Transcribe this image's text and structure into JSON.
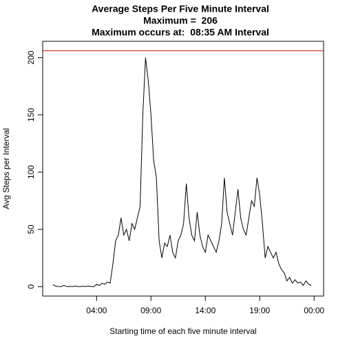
{
  "chart_data": {
    "type": "line",
    "title": [
      "Average Steps Per Five Minute Interval",
      "Maximum =  206",
      "Maximum occurs at:  08:35 AM Interval"
    ],
    "x_label": "Starting time of each five minute interval",
    "y_label": "Avg Steps per Interval",
    "x": [
      0,
      15,
      30,
      45,
      60,
      75,
      90,
      105,
      120,
      135,
      150,
      165,
      180,
      195,
      210,
      225,
      240,
      255,
      270,
      285,
      300,
      315,
      330,
      345,
      360,
      375,
      390,
      405,
      420,
      435,
      450,
      465,
      480,
      495,
      510,
      525,
      540,
      555,
      570,
      585,
      600,
      615,
      630,
      645,
      660,
      675,
      690,
      705,
      720,
      735,
      750,
      765,
      780,
      795,
      810,
      825,
      840,
      855,
      870,
      885,
      900,
      915,
      930,
      945,
      960,
      975,
      990,
      1005,
      1020,
      1035,
      1050,
      1065,
      1080,
      1095,
      1110,
      1125,
      1140,
      1155,
      1170,
      1185,
      1200,
      1215,
      1230,
      1245,
      1260,
      1275,
      1290,
      1305,
      1320,
      1335,
      1350,
      1365,
      1380,
      1395,
      1410,
      1425
    ],
    "series": [
      {
        "name": "Avg Steps",
        "color": "#000000",
        "values": [
          1.7,
          0.3,
          0.1,
          0,
          1.2,
          0,
          0.2,
          0,
          0.5,
          0.2,
          0,
          0.3,
          0.1,
          0.4,
          0,
          0,
          2,
          1,
          3,
          2,
          4,
          3,
          20,
          40,
          45,
          60,
          45,
          50,
          40,
          55,
          50,
          60,
          70,
          150,
          200,
          180,
          150,
          110,
          95,
          40,
          25,
          38,
          35,
          45,
          30,
          25,
          40,
          45,
          55,
          90,
          60,
          45,
          40,
          65,
          45,
          35,
          30,
          45,
          40,
          35,
          30,
          40,
          55,
          95,
          65,
          55,
          45,
          65,
          85,
          60,
          50,
          45,
          60,
          75,
          70,
          95,
          80,
          55,
          25,
          35,
          30,
          25,
          30,
          20,
          15,
          12,
          5,
          8,
          3,
          6,
          3,
          4,
          1,
          5,
          2,
          1
        ]
      }
    ],
    "hline": {
      "value": 206,
      "color": "#cc0000"
    },
    "xlim": [
      -57.4,
      1492.4
    ],
    "xticks": [
      {
        "value": 240,
        "label": "04:00"
      },
      {
        "value": 540,
        "label": "09:00"
      },
      {
        "value": 840,
        "label": "14:00"
      },
      {
        "value": 1140,
        "label": "19:00"
      },
      {
        "value": 1440,
        "label": "00:00"
      }
    ],
    "ylim": [
      -8.24,
      214.24
    ],
    "yticks": [
      0,
      50,
      100,
      150,
      200
    ]
  }
}
